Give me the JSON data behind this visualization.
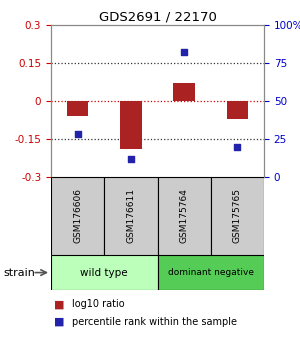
{
  "title": "GDS2691 / 22170",
  "samples": [
    "GSM176606",
    "GSM176611",
    "GSM175764",
    "GSM175765"
  ],
  "log10_ratio": [
    -0.06,
    -0.19,
    0.07,
    -0.07
  ],
  "percentile_rank": [
    28,
    12,
    82,
    20
  ],
  "ylim_left": [
    -0.3,
    0.3
  ],
  "ylim_right": [
    0,
    100
  ],
  "yticks_left": [
    -0.3,
    -0.15,
    0,
    0.15,
    0.3
  ],
  "yticks_right": [
    0,
    25,
    50,
    75,
    100
  ],
  "ytick_labels_right": [
    "0",
    "25",
    "50",
    "75",
    "100%"
  ],
  "bar_color": "#aa2222",
  "dot_color": "#2222aa",
  "groups": [
    {
      "label": "wild type",
      "color": "#bbffbb",
      "samples": [
        0,
        1
      ]
    },
    {
      "label": "dominant negative",
      "color": "#55cc55",
      "samples": [
        2,
        3
      ]
    }
  ],
  "legend_bar_label": "log10 ratio",
  "legend_dot_label": "percentile rank within the sample",
  "strain_label": "strain",
  "background_color": "#ffffff",
  "plot_bg": "#ffffff",
  "hline_color": "#cc0000",
  "dotted_color": "#333333",
  "sample_box_color": "#cccccc",
  "bar_width": 0.4
}
